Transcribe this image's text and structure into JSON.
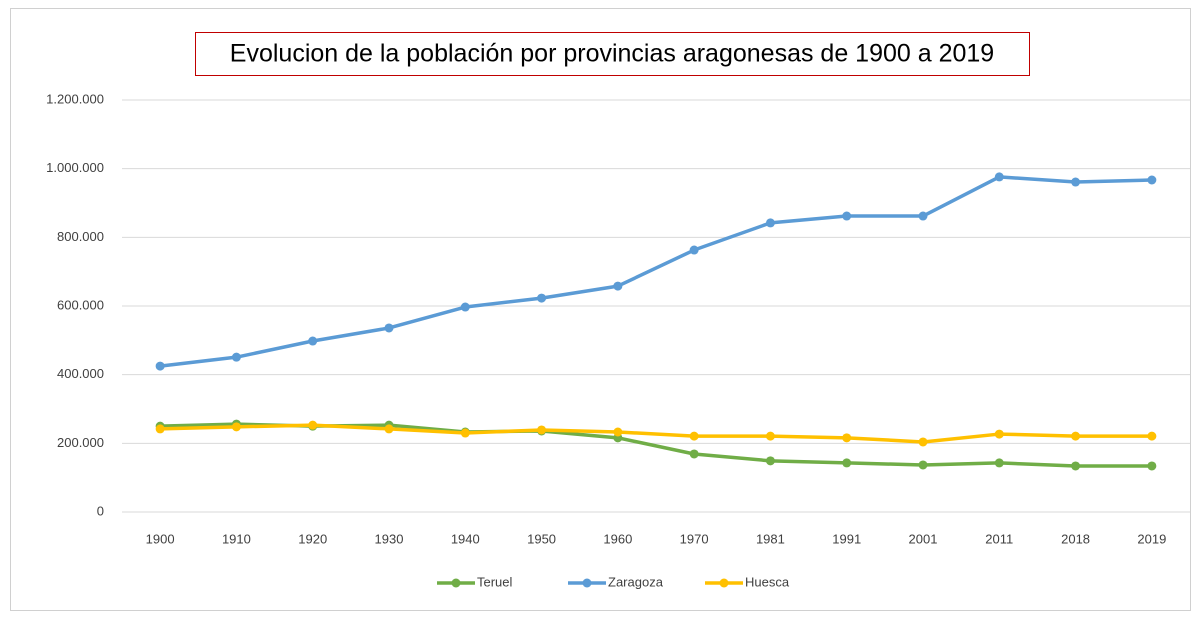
{
  "chart_data": {
    "type": "line",
    "title": "Evolucion de la población por provincias aragonesas de 1900 a 2019",
    "categories": [
      "1900",
      "1910",
      "1920",
      "1930",
      "1940",
      "1950",
      "1960",
      "1970",
      "1981",
      "1991",
      "2001",
      "2011",
      "2018",
      "2019"
    ],
    "series": [
      {
        "name": "Teruel",
        "color": "#70ad47",
        "values": [
          250000,
          256000,
          250000,
          253000,
          233000,
          236000,
          216000,
          169000,
          149000,
          143000,
          137000,
          143000,
          134000,
          134000
        ]
      },
      {
        "name": "Zaragoza",
        "color": "#5b9bd5",
        "values": [
          425000,
          451000,
          498000,
          536000,
          597000,
          623000,
          658000,
          763000,
          842000,
          862000,
          862000,
          976000,
          961000,
          967000
        ]
      },
      {
        "name": "Huesca",
        "color": "#ffc000",
        "values": [
          242000,
          248000,
          253000,
          242000,
          230000,
          239000,
          233000,
          221000,
          221000,
          216000,
          204000,
          227000,
          221000,
          221000
        ]
      }
    ],
    "ylim": [
      0,
      1200000
    ],
    "yticks": [
      0,
      {
        "value": 200000,
        "label": "200.000"
      },
      {
        "value": 400000,
        "label": "400.000"
      },
      {
        "value": 600000,
        "label": "600.000"
      },
      {
        "value": 800000,
        "label": "800.000"
      },
      {
        "value": 1000000,
        "label": "1.000.000"
      },
      {
        "value": 1200000,
        "label": "1.200.000"
      }
    ],
    "grid": true,
    "legend": "bottom"
  }
}
